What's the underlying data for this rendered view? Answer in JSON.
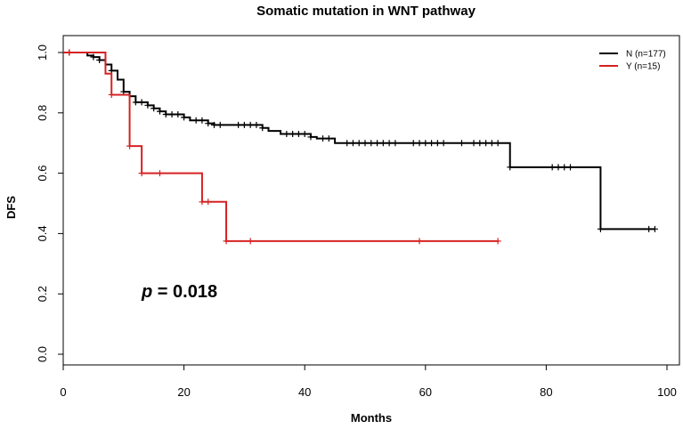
{
  "chart_data": {
    "type": "line",
    "chart_style": "kaplan-meier step curves with censoring marks",
    "title": "Somatic mutation in WNT pathway",
    "xlabel": "Months",
    "ylabel": "DFS",
    "xlim": [
      0,
      100
    ],
    "ylim": [
      0.0,
      1.0
    ],
    "x_ticks": [
      0,
      20,
      40,
      60,
      80,
      100
    ],
    "y_ticks": [
      0.0,
      0.2,
      0.4,
      0.6,
      0.8,
      1.0
    ],
    "x_tick_labels": [
      "0",
      "20",
      "40",
      "60",
      "80",
      "100"
    ],
    "y_tick_labels": [
      "0.0",
      "0.2",
      "0.4",
      "0.6",
      "0.8",
      "1.0"
    ],
    "grid": false,
    "legend_position": "top-right",
    "annotation": {
      "p_symbol": "p",
      "p_text": " = 0.018"
    },
    "series": [
      {
        "name": "N (n=177)",
        "color": "#000000",
        "steps": [
          [
            0,
            1.0
          ],
          [
            4,
            0.99
          ],
          [
            5,
            0.985
          ],
          [
            6,
            0.975
          ],
          [
            7,
            0.96
          ],
          [
            8,
            0.94
          ],
          [
            9,
            0.91
          ],
          [
            10,
            0.87
          ],
          [
            11,
            0.855
          ],
          [
            12,
            0.835
          ],
          [
            14,
            0.825
          ],
          [
            15,
            0.815
          ],
          [
            16,
            0.805
          ],
          [
            17,
            0.795
          ],
          [
            20,
            0.785
          ],
          [
            21,
            0.775
          ],
          [
            24,
            0.765
          ],
          [
            25,
            0.76
          ],
          [
            33,
            0.75
          ],
          [
            34,
            0.74
          ],
          [
            36,
            0.73
          ],
          [
            41,
            0.72
          ],
          [
            42,
            0.715
          ],
          [
            45,
            0.7
          ],
          [
            74,
            0.62
          ],
          [
            89,
            0.415
          ],
          [
            98,
            0.415
          ]
        ],
        "censor_x": [
          1,
          5,
          6,
          8,
          10,
          12,
          13,
          14,
          15,
          16,
          17,
          18,
          19,
          20,
          22,
          23,
          24,
          25,
          26,
          29,
          30,
          31,
          32,
          33,
          37,
          38,
          39,
          40,
          41,
          43,
          44,
          47,
          48,
          49,
          50,
          51,
          52,
          53,
          54,
          55,
          58,
          59,
          60,
          61,
          62,
          63,
          66,
          68,
          69,
          70,
          71,
          72,
          74,
          81,
          82,
          83,
          84,
          89,
          97,
          98
        ]
      },
      {
        "name": "Y (n=15)",
        "color": "#d62222",
        "steps": [
          [
            0,
            1.0
          ],
          [
            7,
            0.93
          ],
          [
            8,
            0.86
          ],
          [
            11,
            0.69
          ],
          [
            13,
            0.6
          ],
          [
            23,
            0.505
          ],
          [
            27,
            0.375
          ],
          [
            72,
            0.375
          ]
        ],
        "censor_x": [
          1,
          8,
          11,
          13,
          16,
          23,
          24,
          27,
          31,
          59,
          72
        ]
      }
    ]
  }
}
